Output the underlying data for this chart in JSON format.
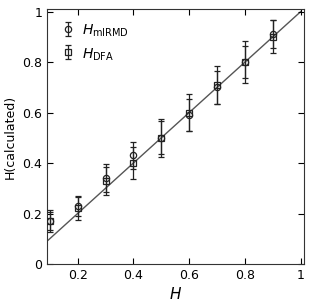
{
  "h_values": [
    0.1,
    0.2,
    0.3,
    0.4,
    0.5,
    0.6,
    0.7,
    0.8,
    0.9
  ],
  "mirmd_y": [
    0.17,
    0.23,
    0.34,
    0.43,
    0.5,
    0.59,
    0.7,
    0.8,
    0.91
  ],
  "mirmd_err": [
    0.035,
    0.04,
    0.055,
    0.055,
    0.065,
    0.065,
    0.065,
    0.065,
    0.055
  ],
  "dfa_y": [
    0.17,
    0.22,
    0.33,
    0.4,
    0.5,
    0.6,
    0.71,
    0.8,
    0.9
  ],
  "dfa_err": [
    0.045,
    0.045,
    0.055,
    0.065,
    0.075,
    0.075,
    0.075,
    0.085,
    0.065
  ],
  "xlabel": "H",
  "ylabel": "H(calculated)",
  "xlim": [
    0.09,
    1.01
  ],
  "ylim": [
    0.0,
    1.01
  ],
  "xticks": [
    0.2,
    0.4,
    0.6,
    0.8,
    1.0
  ],
  "yticks": [
    0,
    0.2,
    0.4,
    0.6,
    0.8,
    1.0
  ],
  "line_color": "#555555",
  "marker_color": "#222222",
  "background_color": "#ffffff",
  "legend_mirmd": "$\\it{H}_{\\rm{mIRMD}}$",
  "legend_dfa": "$\\it{H}_{\\rm{DFA}}$"
}
